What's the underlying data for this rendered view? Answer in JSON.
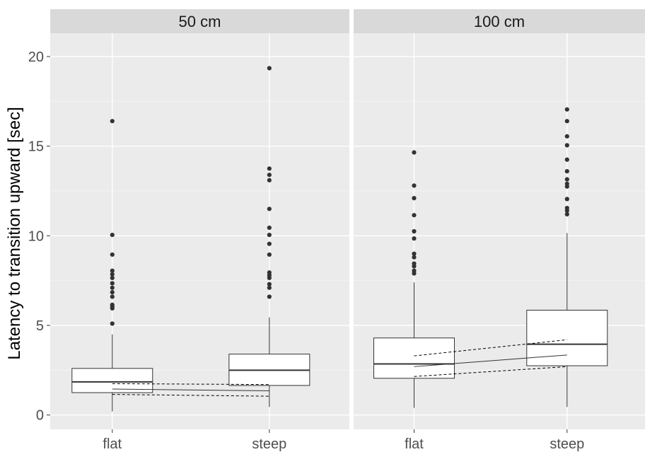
{
  "chart_data": {
    "type": "boxplot",
    "ylabel": "Latency to transition upward [sec]",
    "xlabel": "",
    "ylim": [
      -0.8,
      21.3
    ],
    "y_ticks": [
      0,
      5,
      10,
      15,
      20
    ],
    "y_tick_labels": [
      "0",
      "5",
      "10",
      "15",
      "20"
    ],
    "grid": true,
    "categories": [
      "flat",
      "steep"
    ],
    "facets": [
      {
        "label": "50 cm",
        "boxes": [
          {
            "category": "flat",
            "whisker_low": 0.2,
            "q1": 1.25,
            "median": 1.85,
            "q3": 2.6,
            "whisker_high": 4.5,
            "outliers": [
              5.1,
              5.95,
              6.05,
              6.15,
              6.6,
              6.85,
              7.1,
              7.35,
              7.65,
              7.85,
              8.05,
              8.95,
              10.05,
              16.4
            ]
          },
          {
            "category": "steep",
            "whisker_low": 0.45,
            "q1": 1.65,
            "median": 2.5,
            "q3": 3.4,
            "whisker_high": 5.45,
            "outliers": [
              6.6,
              7.1,
              7.3,
              7.65,
              7.8,
              7.95,
              8.95,
              9.55,
              10.05,
              10.45,
              11.5,
              13.1,
              13.4,
              13.75,
              19.35
            ]
          }
        ],
        "trend": {
          "x": [
            "flat",
            "steep"
          ],
          "fit": [
            1.45,
            1.35
          ],
          "lower": [
            1.15,
            1.05
          ],
          "upper": [
            1.75,
            1.7
          ]
        }
      },
      {
        "label": "100 cm",
        "boxes": [
          {
            "category": "flat",
            "whisker_low": 0.4,
            "q1": 2.05,
            "median": 2.85,
            "q3": 4.3,
            "whisker_high": 7.4,
            "outliers": [
              7.9,
              8.05,
              8.3,
              8.45,
              8.8,
              9.0,
              9.85,
              10.25,
              11.15,
              12.1,
              12.8,
              14.65
            ]
          },
          {
            "category": "steep",
            "whisker_low": 0.45,
            "q1": 2.75,
            "median": 3.95,
            "q3": 5.85,
            "whisker_high": 10.15,
            "outliers": [
              11.2,
              11.4,
              11.55,
              12.05,
              12.75,
              12.9,
              13.15,
              13.6,
              14.25,
              15.05,
              15.55,
              16.4,
              17.05
            ]
          }
        ],
        "trend": {
          "x": [
            "flat",
            "steep"
          ],
          "fit": [
            2.7,
            3.35
          ],
          "lower": [
            2.15,
            2.7
          ],
          "upper": [
            3.3,
            4.2
          ]
        }
      }
    ],
    "colors": {
      "panel_background": "#ebebeb",
      "grid_major": "#ffffff",
      "grid_minor": "#f4f4f4",
      "strip_background": "#d9d9d9",
      "box_fill": "#ffffff",
      "line": "#333333",
      "point": "#333333"
    }
  }
}
